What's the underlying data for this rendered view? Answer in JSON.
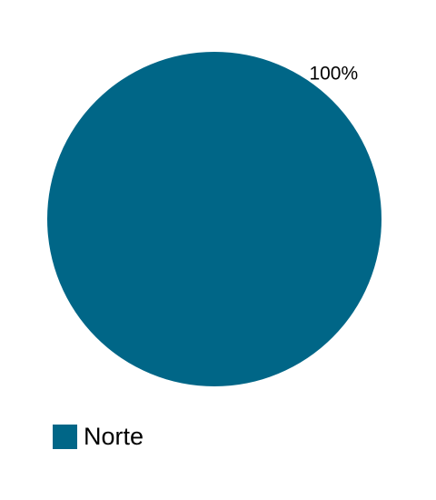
{
  "chart_data": {
    "type": "pie",
    "categories": [
      "Norte"
    ],
    "values": [
      100
    ],
    "data_labels": [
      "100%"
    ],
    "colors": [
      "#006687"
    ],
    "legend_position": "bottom-left"
  }
}
